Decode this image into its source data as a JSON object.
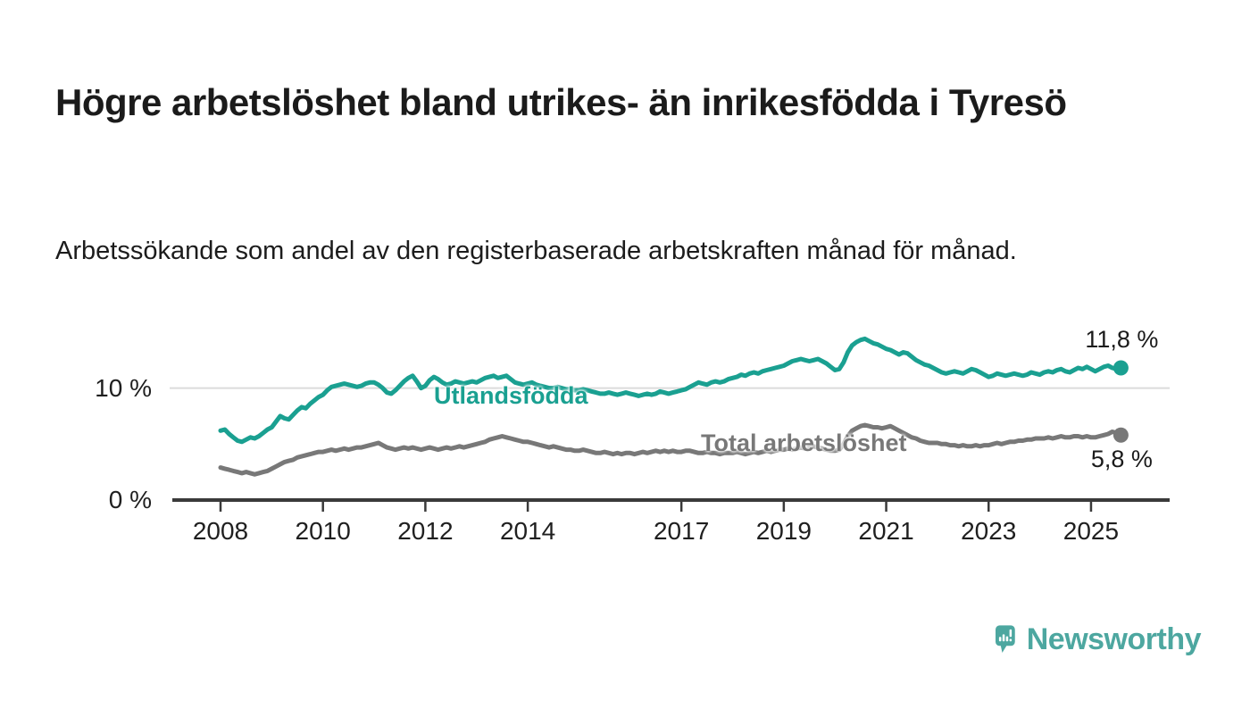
{
  "header": {
    "title": "Högre arbetslöshet bland utrikes- än inrikesfödda i Tyresö",
    "subtitle": "Arbetssökande som andel av den registerbaserade arbetskraften månad för månad."
  },
  "colors": {
    "series1": "#1aa091",
    "series2": "#787878",
    "axis": "#3a3a3a",
    "grid": "#dbdbdb",
    "text": "#1f1f1f",
    "logo": "#4da7a0"
  },
  "logo": {
    "text": "Newsworthy",
    "icon": "speech-bubble-bar-chart"
  },
  "chart_data": {
    "type": "line",
    "title": "Högre arbetslöshet bland utrikes- än inrikesfödda i Tyresö",
    "xlabel": "",
    "ylabel": "Arbetssökande som andel av den registerbaserade arbetskraften",
    "x_unit": "month",
    "x_start_year": 2008,
    "x_end": "2025-08",
    "xlim": [
      2007.05,
      2026.55
    ],
    "ylim": [
      0,
      16
    ],
    "grid": "single-horizontal-gridline-at-10",
    "legend_position": "inline-labels-on-lines",
    "x_ticks": [
      "2008",
      "2010",
      "2012",
      "2014",
      "2017",
      "2019",
      "2021",
      "2023",
      "2025"
    ],
    "y_ticks": [
      {
        "value": 0,
        "label": "0 %"
      },
      {
        "value": 10,
        "label": "10 %"
      }
    ],
    "series": [
      {
        "name": "Utlandsfödda",
        "color_key": "series1",
        "end_label": "11,8 %",
        "end_value": 11.8,
        "values": [
          6.2,
          6.3,
          5.9,
          5.6,
          5.3,
          5.2,
          5.4,
          5.6,
          5.5,
          5.7,
          6.0,
          6.3,
          6.5,
          7.0,
          7.5,
          7.3,
          7.2,
          7.6,
          8.0,
          8.3,
          8.2,
          8.6,
          8.9,
          9.2,
          9.4,
          9.8,
          10.1,
          10.2,
          10.3,
          10.4,
          10.3,
          10.2,
          10.1,
          10.2,
          10.4,
          10.5,
          10.5,
          10.3,
          10.0,
          9.6,
          9.5,
          9.8,
          10.2,
          10.6,
          10.9,
          11.1,
          10.6,
          10.0,
          10.2,
          10.7,
          11.0,
          10.8,
          10.5,
          10.3,
          10.4,
          10.6,
          10.5,
          10.4,
          10.5,
          10.6,
          10.5,
          10.7,
          10.9,
          11.0,
          11.1,
          10.9,
          11.0,
          11.1,
          10.8,
          10.5,
          10.4,
          10.3,
          10.4,
          10.5,
          10.3,
          10.2,
          10.1,
          10.0,
          10.0,
          10.1,
          10.0,
          9.9,
          9.9,
          9.8,
          9.8,
          9.9,
          9.8,
          9.7,
          9.6,
          9.5,
          9.5,
          9.6,
          9.5,
          9.4,
          9.5,
          9.6,
          9.5,
          9.4,
          9.3,
          9.4,
          9.5,
          9.4,
          9.5,
          9.7,
          9.6,
          9.5,
          9.6,
          9.7,
          9.8,
          9.9,
          10.1,
          10.3,
          10.5,
          10.4,
          10.3,
          10.5,
          10.6,
          10.5,
          10.6,
          10.8,
          10.9,
          11.0,
          11.2,
          11.1,
          11.3,
          11.4,
          11.3,
          11.5,
          11.6,
          11.7,
          11.8,
          11.9,
          12.0,
          12.2,
          12.4,
          12.5,
          12.6,
          12.5,
          12.4,
          12.5,
          12.6,
          12.4,
          12.2,
          11.9,
          11.6,
          11.7,
          12.3,
          13.2,
          13.8,
          14.1,
          14.3,
          14.4,
          14.2,
          14.0,
          13.9,
          13.7,
          13.5,
          13.4,
          13.2,
          13.0,
          13.2,
          13.1,
          12.8,
          12.5,
          12.3,
          12.1,
          12.0,
          11.8,
          11.6,
          11.4,
          11.3,
          11.4,
          11.5,
          11.4,
          11.3,
          11.5,
          11.7,
          11.6,
          11.4,
          11.2,
          11.0,
          11.1,
          11.3,
          11.2,
          11.1,
          11.2,
          11.3,
          11.2,
          11.1,
          11.2,
          11.4,
          11.3,
          11.2,
          11.4,
          11.5,
          11.4,
          11.6,
          11.7,
          11.5,
          11.4,
          11.6,
          11.8,
          11.7,
          11.9,
          11.7,
          11.5,
          11.7,
          11.9,
          12.0,
          11.8,
          11.7,
          11.8
        ]
      },
      {
        "name": "Total arbetslöshet",
        "color_key": "series2",
        "end_label": "5,8 %",
        "end_value": 5.8,
        "values": [
          2.9,
          2.8,
          2.7,
          2.6,
          2.5,
          2.4,
          2.5,
          2.4,
          2.3,
          2.4,
          2.5,
          2.6,
          2.8,
          3.0,
          3.2,
          3.4,
          3.5,
          3.6,
          3.8,
          3.9,
          4.0,
          4.1,
          4.2,
          4.3,
          4.3,
          4.4,
          4.5,
          4.4,
          4.5,
          4.6,
          4.5,
          4.6,
          4.7,
          4.7,
          4.8,
          4.9,
          5.0,
          5.1,
          4.9,
          4.7,
          4.6,
          4.5,
          4.6,
          4.7,
          4.6,
          4.7,
          4.6,
          4.5,
          4.6,
          4.7,
          4.6,
          4.5,
          4.6,
          4.7,
          4.6,
          4.7,
          4.8,
          4.7,
          4.8,
          4.9,
          5.0,
          5.1,
          5.2,
          5.4,
          5.5,
          5.6,
          5.7,
          5.6,
          5.5,
          5.4,
          5.3,
          5.2,
          5.2,
          5.1,
          5.0,
          4.9,
          4.8,
          4.7,
          4.8,
          4.7,
          4.6,
          4.5,
          4.5,
          4.4,
          4.4,
          4.5,
          4.4,
          4.3,
          4.2,
          4.2,
          4.3,
          4.2,
          4.1,
          4.2,
          4.1,
          4.2,
          4.2,
          4.1,
          4.2,
          4.3,
          4.2,
          4.3,
          4.4,
          4.3,
          4.4,
          4.3,
          4.4,
          4.3,
          4.3,
          4.4,
          4.4,
          4.3,
          4.2,
          4.2,
          4.3,
          4.2,
          4.2,
          4.1,
          4.2,
          4.2,
          4.2,
          4.3,
          4.2,
          4.1,
          4.2,
          4.3,
          4.2,
          4.3,
          4.4,
          4.3,
          4.4,
          4.5,
          4.5,
          4.6,
          4.5,
          4.6,
          4.7,
          4.6,
          4.7,
          4.8,
          4.7,
          4.6,
          4.5,
          4.4,
          4.4,
          4.5,
          5.0,
          5.7,
          6.2,
          6.4,
          6.6,
          6.7,
          6.6,
          6.5,
          6.5,
          6.4,
          6.5,
          6.6,
          6.4,
          6.2,
          6.0,
          5.8,
          5.6,
          5.5,
          5.3,
          5.2,
          5.1,
          5.1,
          5.1,
          5.0,
          5.0,
          4.9,
          4.9,
          4.8,
          4.9,
          4.8,
          4.8,
          4.9,
          4.8,
          4.9,
          4.9,
          5.0,
          5.1,
          5.0,
          5.1,
          5.2,
          5.2,
          5.3,
          5.3,
          5.4,
          5.4,
          5.5,
          5.5,
          5.5,
          5.6,
          5.5,
          5.6,
          5.7,
          5.6,
          5.6,
          5.7,
          5.7,
          5.6,
          5.7,
          5.6,
          5.6,
          5.7,
          5.8,
          5.9,
          6.1,
          6.0,
          5.8
        ]
      }
    ]
  }
}
